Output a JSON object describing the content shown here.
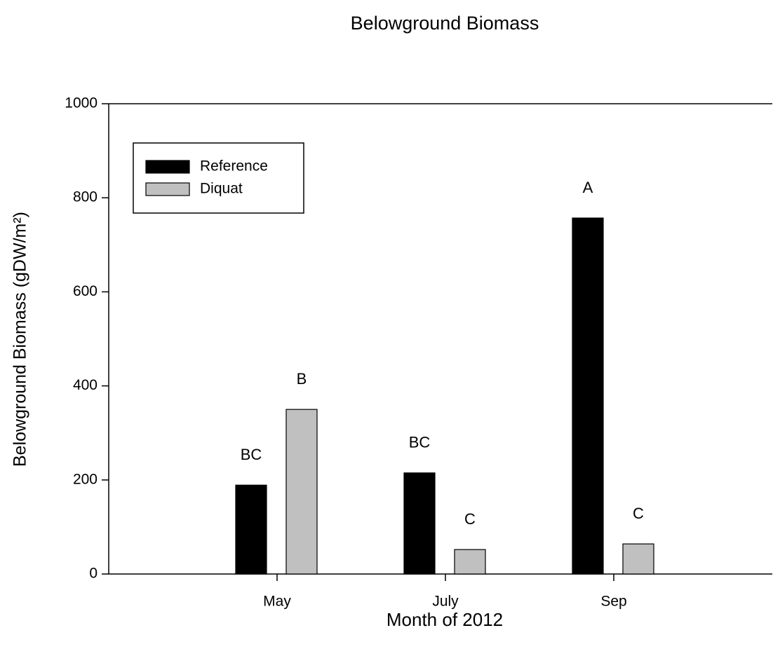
{
  "chart_data": {
    "type": "bar",
    "title": "Belowground Biomass",
    "xlabel": "Month of 2012",
    "ylabel": "Belowground Biomass (gDW/m²)",
    "categories": [
      "May",
      "July",
      "Sep"
    ],
    "series": [
      {
        "name": "Reference",
        "color": "#000000",
        "values": [
          189,
          215,
          757
        ],
        "letters": [
          "BC",
          "BC",
          "A"
        ]
      },
      {
        "name": "Diquat",
        "color": "#c0c0c0",
        "values": [
          350,
          52,
          64
        ],
        "letters": [
          "B",
          "C",
          "C"
        ]
      }
    ],
    "ylim": [
      0,
      1000
    ],
    "yticks": [
      0,
      200,
      400,
      600,
      800,
      1000
    ],
    "legend": "upper left"
  }
}
